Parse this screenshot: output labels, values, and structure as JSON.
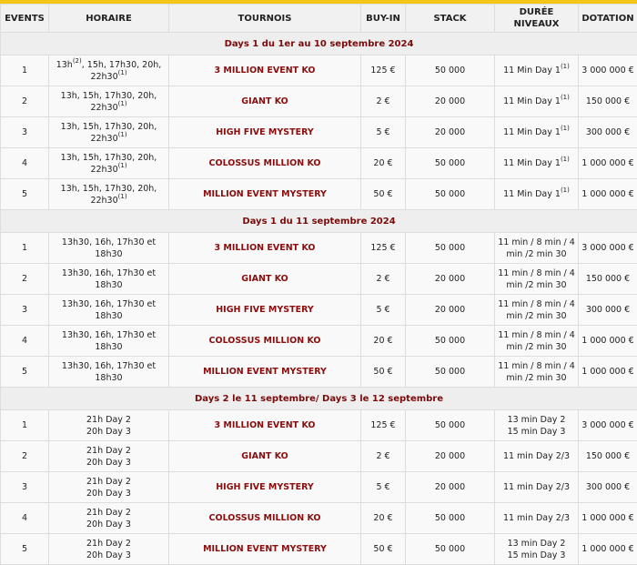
{
  "headers": [
    "EVENTS",
    "HORAIRE",
    "TOURNOIS",
    "BUY-IN",
    "STACK",
    "DURÉE NIVEAUX",
    "DOTATION"
  ],
  "sections": [
    {
      "title": "Days 1 du 1er au 10 septembre 2024",
      "rows": [
        {
          "event": "1",
          "horaire": [
            [
              "13h"
            ],
            [
              "(2)",
              "sup"
            ],
            [
              ", 15h, 17h30, 20h, 22h30"
            ],
            [
              "(1)",
              "sup"
            ]
          ],
          "tournoi": "3 MILLION EVENT KO",
          "buyin": "125 €",
          "stack": "50 000",
          "duree": [
            [
              "11 Min Day 1"
            ],
            [
              "(1)",
              "sup"
            ]
          ],
          "dotation": "3 000 000 €"
        },
        {
          "event": "2",
          "horaire": [
            [
              "13h, 15h, 17h30, 20h, 22h30"
            ],
            [
              "(1)",
              "sup"
            ]
          ],
          "tournoi": "GIANT KO",
          "buyin": "2 €",
          "stack": "20 000",
          "duree": [
            [
              "11 Min Day 1"
            ],
            [
              "(1)",
              "sup"
            ]
          ],
          "dotation": "150 000 €"
        },
        {
          "event": "3",
          "horaire": [
            [
              "13h, 15h, 17h30, 20h, 22h30"
            ],
            [
              "(1)",
              "sup"
            ]
          ],
          "tournoi": "HIGH FIVE MYSTERY",
          "buyin": "5 €",
          "stack": "20 000",
          "duree": [
            [
              "11 Min Day 1"
            ],
            [
              "(1)",
              "sup"
            ]
          ],
          "dotation": "300 000 €"
        },
        {
          "event": "4",
          "horaire": [
            [
              "13h, 15h, 17h30, 20h, 22h30"
            ],
            [
              "(1)",
              "sup"
            ]
          ],
          "tournoi": "COLOSSUS MILLION KO",
          "buyin": "20 €",
          "stack": "50 000",
          "duree": [
            [
              "11 Min Day 1"
            ],
            [
              "(1)",
              "sup"
            ]
          ],
          "dotation": "1 000 000 €"
        },
        {
          "event": "5",
          "horaire": [
            [
              "13h, 15h, 17h30, 20h, 22h30"
            ],
            [
              "(1)",
              "sup"
            ]
          ],
          "tournoi": "MILLION EVENT MYSTERY",
          "buyin": "50 €",
          "stack": "50 000",
          "duree": [
            [
              "11 Min Day 1"
            ],
            [
              "(1)",
              "sup"
            ]
          ],
          "dotation": "1 000 000 €"
        }
      ]
    },
    {
      "title": "Days 1 du 11 septembre 2024",
      "rows": [
        {
          "event": "1",
          "horaire": [
            [
              "13h30, 16h, 17h30 et 18h30"
            ]
          ],
          "tournoi": "3 MILLION EVENT KO",
          "buyin": "125 €",
          "stack": "50 000",
          "duree": [
            [
              "11 min / 8 min / 4 min /2 min 30"
            ]
          ],
          "dotation": "3 000 000 €"
        },
        {
          "event": "2",
          "horaire": [
            [
              "13h30, 16h, 17h30 et 18h30"
            ]
          ],
          "tournoi": "GIANT KO",
          "buyin": "2 €",
          "stack": "20 000",
          "duree": [
            [
              "11 min / 8 min / 4 min /2 min 30"
            ]
          ],
          "dotation": "150 000 €"
        },
        {
          "event": "3",
          "horaire": [
            [
              "13h30, 16h, 17h30 et 18h30"
            ]
          ],
          "tournoi": "HIGH FIVE MYSTERY",
          "buyin": "5 €",
          "stack": "20 000",
          "duree": [
            [
              "11 min / 8 min / 4 min /2 min 30"
            ]
          ],
          "dotation": "300 000 €"
        },
        {
          "event": "4",
          "horaire": [
            [
              "13h30, 16h, 17h30 et 18h30"
            ]
          ],
          "tournoi": "COLOSSUS MILLION KO",
          "buyin": "20 €",
          "stack": "50 000",
          "duree": [
            [
              "11 min / 8 min / 4 min /2 min 30"
            ]
          ],
          "dotation": "1 000 000 €"
        },
        {
          "event": "5",
          "horaire": [
            [
              "13h30, 16h, 17h30 et 18h30"
            ]
          ],
          "tournoi": "MILLION EVENT MYSTERY",
          "buyin": "50 €",
          "stack": "50 000",
          "duree": [
            [
              "11 min / 8 min / 4 min /2 min 30"
            ]
          ],
          "dotation": "1 000 000 €"
        }
      ]
    },
    {
      "title": "Days 2 le 11 septembre/ Days 3 le 12 septembre",
      "rows": [
        {
          "event": "1",
          "horaire": [
            [
              "21h Day 2"
            ],
            [
              "",
              "br"
            ],
            [
              "20h Day 3"
            ]
          ],
          "tournoi": "3 MILLION EVENT KO",
          "buyin": "125 €",
          "stack": "50 000",
          "duree": [
            [
              "13 min Day 2"
            ],
            [
              "",
              "br"
            ],
            [
              "15 min Day 3"
            ]
          ],
          "dotation": "3 000 000 €"
        },
        {
          "event": "2",
          "horaire": [
            [
              "21h Day 2"
            ],
            [
              "",
              "br"
            ],
            [
              "20h Day 3"
            ]
          ],
          "tournoi": "GIANT KO",
          "buyin": "2 €",
          "stack": "20 000",
          "duree": [
            [
              "11 min Day 2/3"
            ]
          ],
          "dotation": "150 000 €"
        },
        {
          "event": "3",
          "horaire": [
            [
              "21h Day 2"
            ],
            [
              "",
              "br"
            ],
            [
              "20h Day 3"
            ]
          ],
          "tournoi": "HIGH FIVE MYSTERY",
          "buyin": "5 €",
          "stack": "20 000",
          "duree": [
            [
              "11 min Day 2/3"
            ]
          ],
          "dotation": "300 000 €"
        },
        {
          "event": "4",
          "horaire": [
            [
              "21h Day 2"
            ],
            [
              "",
              "br"
            ],
            [
              "20h Day 3"
            ]
          ],
          "tournoi": "COLOSSUS MILLION KO",
          "buyin": "20 €",
          "stack": "50 000",
          "duree": [
            [
              "11 min Day 2/3"
            ]
          ],
          "dotation": "1 000 000 €"
        },
        {
          "event": "5",
          "horaire": [
            [
              "21h Day 2"
            ],
            [
              "",
              "br"
            ],
            [
              "20h Day 3"
            ]
          ],
          "tournoi": "MILLION EVENT MYSTERY",
          "buyin": "50 €",
          "stack": "50 000",
          "duree": [
            [
              "13 min Day 2"
            ],
            [
              "",
              "br"
            ],
            [
              "15 min Day 3"
            ]
          ],
          "dotation": "1 000 000 €"
        }
      ]
    }
  ]
}
